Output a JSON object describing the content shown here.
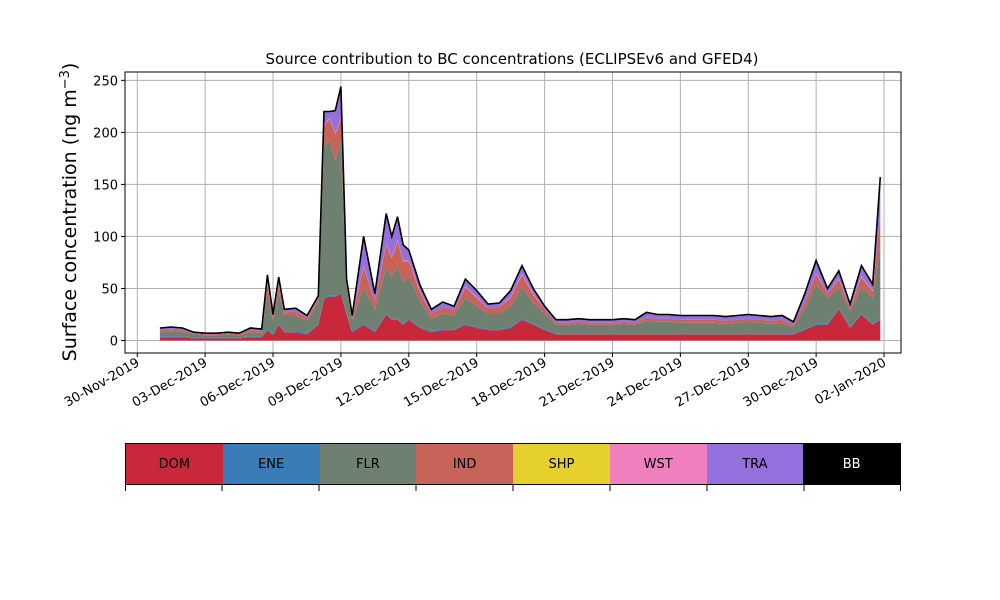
{
  "chart_data": {
    "type": "area",
    "title": "Source contribution to BC concentrations (ECLIPSEv6 and GFED4)",
    "xlabel": "",
    "ylabel": "Surface concentration (ng m",
    "ylabel_exponent": "−3",
    "ylabel_close": ")",
    "ylim": [
      -12,
      258
    ],
    "xlim": [
      "2019-11-29T11:00",
      "2020-01-02T18:00"
    ],
    "y_ticks": [
      0,
      50,
      100,
      150,
      200,
      250
    ],
    "x_ticks": [
      "30-Nov-2019",
      "03-Dec-2019",
      "06-Dec-2019",
      "09-Dec-2019",
      "12-Dec-2019",
      "15-Dec-2019",
      "18-Dec-2019",
      "21-Dec-2019",
      "24-Dec-2019",
      "27-Dec-2019",
      "30-Dec-2019",
      "02-Jan-2020"
    ],
    "x_tick_dates": [
      "2019-11-30",
      "2019-12-03",
      "2019-12-06",
      "2019-12-09",
      "2019-12-12",
      "2019-12-15",
      "2019-12-18",
      "2019-12-21",
      "2019-12-24",
      "2019-12-27",
      "2019-12-30",
      "2020-01-02"
    ],
    "grid": true,
    "legend_placement": "color bar below chart",
    "x": [
      "2019-12-01T00:00",
      "2019-12-01T12:00",
      "2019-12-02T00:00",
      "2019-12-02T12:00",
      "2019-12-03T00:00",
      "2019-12-03T12:00",
      "2019-12-04T00:00",
      "2019-12-04T12:00",
      "2019-12-05T00:00",
      "2019-12-05T12:00",
      "2019-12-05T18:00",
      "2019-12-06T00:00",
      "2019-12-06T06:00",
      "2019-12-06T12:00",
      "2019-12-07T00:00",
      "2019-12-07T12:00",
      "2019-12-08T00:00",
      "2019-12-08T06:00",
      "2019-12-08T12:00",
      "2019-12-08T18:00",
      "2019-12-09T00:00",
      "2019-12-09T06:00",
      "2019-12-09T12:00",
      "2019-12-10T00:00",
      "2019-12-10T12:00",
      "2019-12-11T00:00",
      "2019-12-11T06:00",
      "2019-12-11T12:00",
      "2019-12-11T18:00",
      "2019-12-12T00:00",
      "2019-12-12T12:00",
      "2019-12-13T00:00",
      "2019-12-13T12:00",
      "2019-12-14T00:00",
      "2019-12-14T12:00",
      "2019-12-15T00:00",
      "2019-12-15T12:00",
      "2019-12-16T00:00",
      "2019-12-16T12:00",
      "2019-12-17T00:00",
      "2019-12-17T12:00",
      "2019-12-18T00:00",
      "2019-12-18T12:00",
      "2019-12-19T00:00",
      "2019-12-19T12:00",
      "2019-12-20T00:00",
      "2019-12-20T12:00",
      "2019-12-21T00:00",
      "2019-12-21T12:00",
      "2019-12-22T00:00",
      "2019-12-22T12:00",
      "2019-12-23T00:00",
      "2019-12-23T12:00",
      "2019-12-24T00:00",
      "2019-12-24T12:00",
      "2019-12-25T00:00",
      "2019-12-25T12:00",
      "2019-12-26T00:00",
      "2019-12-26T12:00",
      "2019-12-27T00:00",
      "2019-12-27T12:00",
      "2019-12-28T00:00",
      "2019-12-28T12:00",
      "2019-12-29T00:00",
      "2019-12-29T12:00",
      "2019-12-30T00:00",
      "2019-12-30T12:00",
      "2019-12-31T00:00",
      "2019-12-31T12:00",
      "2020-01-01T00:00",
      "2020-01-01T12:00",
      "2020-01-01T20:00"
    ],
    "series": [
      {
        "name": "DOM",
        "color": "#c8283a",
        "values": [
          3,
          3,
          3,
          2,
          2,
          2,
          2,
          2,
          3,
          3,
          10,
          5,
          15,
          8,
          8,
          6,
          15,
          40,
          42,
          42,
          45,
          25,
          8,
          15,
          8,
          25,
          20,
          20,
          15,
          20,
          12,
          8,
          10,
          10,
          15,
          12,
          10,
          10,
          12,
          20,
          15,
          10,
          6,
          6,
          6,
          6,
          6,
          6,
          6,
          6,
          6,
          6,
          6,
          6,
          6,
          6,
          6,
          6,
          6,
          6,
          6,
          6,
          6,
          6,
          10,
          15,
          15,
          30,
          12,
          25,
          15,
          20
        ]
      },
      {
        "name": "ENE",
        "color": "#3a7cb5",
        "values": [
          1,
          1,
          1,
          1,
          1,
          1,
          1,
          1,
          1,
          1,
          1,
          1,
          1,
          1,
          1,
          1,
          1,
          1,
          1,
          1,
          1,
          1,
          1,
          1,
          1,
          1,
          1,
          1,
          1,
          1,
          1,
          1,
          1,
          1,
          1,
          1,
          1,
          1,
          1,
          1,
          1,
          1,
          1,
          1,
          1,
          1,
          1,
          1,
          1,
          1,
          1,
          1,
          1,
          1,
          1,
          1,
          1,
          1,
          1,
          1,
          1,
          1,
          1,
          1,
          1,
          1,
          1,
          1,
          1,
          1,
          1,
          1
        ]
      },
      {
        "name": "FLR",
        "color": "#6e8070",
        "values": [
          4,
          5,
          4,
          3,
          2,
          2,
          3,
          2,
          4,
          3,
          35,
          12,
          30,
          15,
          15,
          12,
          20,
          145,
          150,
          130,
          145,
          25,
          10,
          35,
          20,
          45,
          40,
          50,
          40,
          40,
          25,
          12,
          15,
          13,
          25,
          20,
          15,
          15,
          20,
          30,
          20,
          15,
          8,
          8,
          9,
          8,
          8,
          8,
          9,
          8,
          12,
          11,
          11,
          10,
          10,
          10,
          10,
          9,
          10,
          11,
          10,
          9,
          10,
          6,
          20,
          38,
          25,
          20,
          15,
          25,
          25,
          70
        ]
      },
      {
        "name": "IND",
        "color": "#c8635a",
        "values": [
          2,
          2,
          2,
          1,
          1,
          1,
          1,
          1,
          2,
          2,
          8,
          4,
          8,
          3,
          4,
          3,
          4,
          20,
          20,
          25,
          22,
          5,
          3,
          20,
          8,
          22,
          18,
          25,
          20,
          15,
          8,
          5,
          6,
          5,
          10,
          8,
          5,
          6,
          8,
          12,
          8,
          4,
          2,
          2,
          2,
          2,
          2,
          2,
          2,
          2,
          3,
          3,
          3,
          3,
          3,
          3,
          3,
          3,
          3,
          3,
          3,
          3,
          3,
          2,
          6,
          10,
          4,
          8,
          3,
          10,
          6,
          30
        ]
      },
      {
        "name": "SHP",
        "color": "#e6d02e",
        "values": [
          0,
          0,
          0,
          0,
          0,
          0,
          0,
          0,
          0,
          0,
          0,
          0,
          0,
          0,
          0,
          0,
          0,
          0,
          0,
          0,
          0,
          0,
          0,
          0,
          0,
          0,
          0,
          0,
          0,
          0,
          0,
          0,
          0,
          0,
          0,
          0,
          0,
          0,
          0,
          0,
          0,
          0,
          0,
          0,
          0,
          0,
          0,
          0,
          0,
          0,
          0,
          0,
          0,
          0,
          0,
          0,
          0,
          0,
          0,
          0,
          0,
          0,
          0,
          0,
          0,
          0,
          0,
          0,
          0,
          0,
          0,
          0
        ]
      },
      {
        "name": "WST",
        "color": "#f07fbe",
        "values": [
          0,
          0,
          0,
          0,
          0,
          0,
          0,
          0,
          0,
          0,
          1,
          0,
          1,
          0,
          0,
          0,
          0,
          1,
          1,
          1,
          1,
          0,
          0,
          1,
          0,
          1,
          1,
          1,
          1,
          1,
          1,
          0,
          0,
          0,
          1,
          1,
          0,
          0,
          1,
          1,
          1,
          0,
          0,
          0,
          0,
          0,
          0,
          0,
          0,
          0,
          0,
          0,
          0,
          0,
          0,
          0,
          0,
          0,
          0,
          0,
          0,
          0,
          0,
          0,
          0,
          1,
          0,
          1,
          0,
          1,
          1,
          1
        ]
      },
      {
        "name": "TRA",
        "color": "#9370db",
        "values": [
          2,
          2,
          2,
          1,
          1,
          1,
          1,
          1,
          2,
          2,
          8,
          3,
          6,
          3,
          3,
          2,
          3,
          13,
          6,
          22,
          30,
          3,
          2,
          28,
          8,
          28,
          20,
          22,
          15,
          10,
          6,
          4,
          5,
          4,
          7,
          6,
          4,
          4,
          6,
          8,
          5,
          3,
          3,
          3,
          3,
          3,
          3,
          3,
          3,
          3,
          5,
          4,
          4,
          4,
          4,
          4,
          4,
          4,
          4,
          4,
          4,
          4,
          4,
          3,
          8,
          12,
          5,
          7,
          4,
          10,
          6,
          35
        ]
      },
      {
        "name": "BB",
        "color": "#000000",
        "values": [
          0,
          0,
          0,
          0,
          0,
          0,
          0,
          0,
          0,
          0,
          0,
          0,
          0,
          0,
          0,
          0,
          0,
          0,
          0,
          0,
          0,
          0,
          0,
          0,
          0,
          0,
          0,
          0,
          0,
          0,
          0,
          0,
          0,
          0,
          0,
          0,
          0,
          0,
          0,
          0,
          0,
          0,
          0,
          0,
          0,
          0,
          0,
          0,
          0,
          0,
          0,
          0,
          0,
          0,
          0,
          0,
          0,
          0,
          0,
          0,
          0,
          0,
          0,
          0,
          0,
          0,
          0,
          0,
          0,
          0,
          0,
          0
        ]
      }
    ]
  },
  "legend": [
    {
      "label": "DOM",
      "color": "#c8283a",
      "text_color": "#000000"
    },
    {
      "label": "ENE",
      "color": "#3a7cb5",
      "text_color": "#000000"
    },
    {
      "label": "FLR",
      "color": "#6e8070",
      "text_color": "#000000"
    },
    {
      "label": "IND",
      "color": "#c8635a",
      "text_color": "#000000"
    },
    {
      "label": "SHP",
      "color": "#e6d02e",
      "text_color": "#000000"
    },
    {
      "label": "WST",
      "color": "#f07fbe",
      "text_color": "#000000"
    },
    {
      "label": "TRA",
      "color": "#9370db",
      "text_color": "#000000"
    },
    {
      "label": "BB",
      "color": "#000000",
      "text_color": "#ffffff"
    }
  ]
}
